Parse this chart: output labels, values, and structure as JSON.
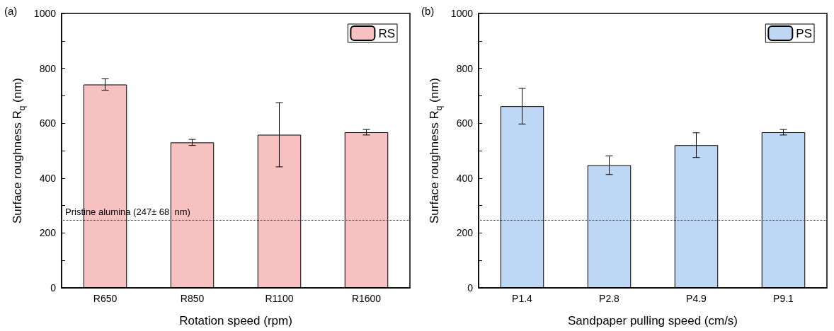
{
  "chart_data": [
    {
      "type": "bar",
      "xlabel": "Rotation speed (rpm)",
      "ylabel": "Surface roughness R$_{q}$ (nm)",
      "annotations": [
        "(a)"
      ],
      "categories": [
        "R650",
        "R850",
        "R1100",
        "R1600"
      ],
      "series": [
        {
          "name": "RS",
          "color": "#f8c1c1",
          "values": [
            741,
            530,
            558,
            567
          ],
          "errors": [
            21,
            11,
            117,
            10
          ]
        }
      ],
      "ylim": [
        0,
        1000
      ],
      "yticks": [
        0,
        {
          "value": 100,
          "label": null
        },
        200,
        {
          "value": 300,
          "label": null
        },
        400,
        {
          "value": 500,
          "label": null
        },
        600,
        {
          "value": 700,
          "label": null
        },
        800,
        {
          "value": 900,
          "label": null
        },
        1000
      ],
      "ref_lines": [
        {
          "axis": "y",
          "value": 247,
          "label": "Pristine alumina (247± 68  nm)",
          "line_style": "dotted",
          "color": "#333333"
        }
      ],
      "legend": "top right",
      "grid": false
    },
    {
      "type": "bar",
      "xlabel": "Sandpaper pulling speed (cm/s)",
      "ylabel": "Surface roughness R$_{q}$ (nm)",
      "annotations": [
        "(b)"
      ],
      "categories": [
        "P1.4",
        "P2.8",
        "P4.9",
        "P9.1"
      ],
      "series": [
        {
          "name": "PS",
          "color": "#bdd7f5",
          "values": [
            662,
            447,
            520,
            567
          ],
          "errors": [
            65,
            34,
            45,
            10
          ]
        }
      ],
      "ylim": [
        0,
        1000
      ],
      "yticks": [
        0,
        {
          "value": 100,
          "label": null
        },
        200,
        {
          "value": 300,
          "label": null
        },
        400,
        {
          "value": 500,
          "label": null
        },
        600,
        {
          "value": 700,
          "label": null
        },
        800,
        {
          "value": 900,
          "label": null
        },
        1000
      ],
      "ref_lines": [
        {
          "axis": "y",
          "value": 247,
          "label": null,
          "line_style": "dotted",
          "color": "#333333"
        }
      ],
      "legend": "top right",
      "grid": false
    }
  ]
}
